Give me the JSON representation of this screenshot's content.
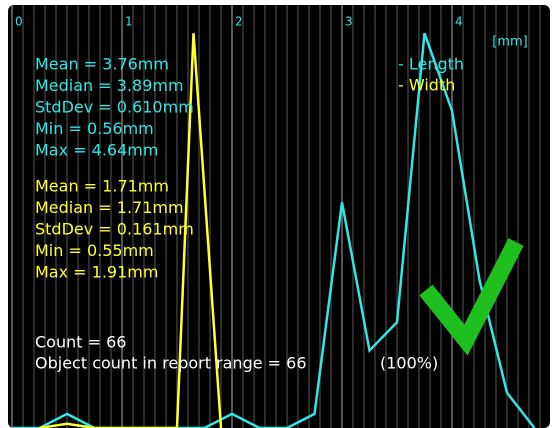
{
  "chart_data": {
    "type": "line",
    "x_label": "[mm]",
    "xlim": [
      0,
      4.87
    ],
    "ylim": [
      0,
      30
    ],
    "xticks": [
      0,
      1,
      2,
      3,
      4
    ],
    "minor_xticks": [
      0.1,
      0.2,
      0.3,
      0.4,
      0.5,
      0.6,
      0.7,
      0.8,
      0.9,
      1.1,
      1.2,
      1.3,
      1.4,
      1.5,
      1.6,
      1.7,
      1.8,
      1.9,
      2.1,
      2.2,
      2.3,
      2.4,
      2.5,
      2.6,
      2.7,
      2.8,
      2.9,
      3.1,
      3.2,
      3.3,
      3.4,
      3.5,
      3.6,
      3.7,
      3.8,
      3.9,
      4.1,
      4.2,
      4.3,
      4.4,
      4.5,
      4.6,
      4.7,
      4.8
    ],
    "grid": true,
    "series": [
      {
        "name": "- Length",
        "color": "#33e6e6",
        "x": [
          0,
          0.25,
          0.5,
          0.75,
          1,
          1.25,
          1.5,
          1.75,
          2,
          2.25,
          2.5,
          2.75,
          3,
          3.25,
          3.5,
          3.75,
          4,
          4.25,
          4.5,
          4.75
        ],
        "values": [
          0,
          0,
          1,
          0,
          0,
          0,
          0,
          0,
          1,
          0,
          0,
          1,
          16,
          5.5,
          7.5,
          28,
          22.5,
          10.5,
          2.5,
          0
        ]
      },
      {
        "name": "- Width",
        "color": "#ffff33",
        "x": [
          0.25,
          0.5,
          0.75,
          1.5,
          1.65,
          1.9
        ],
        "values": [
          0,
          0.3,
          0,
          0,
          28,
          0
        ]
      }
    ],
    "stats_length": [
      "Mean = 3.76mm",
      "Median = 3.89mm",
      "StdDev = 0.610mm",
      "Min = 0.56mm",
      "Max = 4.64mm"
    ],
    "stats_width": [
      "Mean = 1.71mm",
      "Median = 1.71mm",
      "StdDev = 0.161mm",
      "Min = 0.55mm",
      "Max = 1.91mm"
    ],
    "summary": [
      "Count = 66",
      "Object count in report range = 66",
      "(100%)"
    ]
  }
}
